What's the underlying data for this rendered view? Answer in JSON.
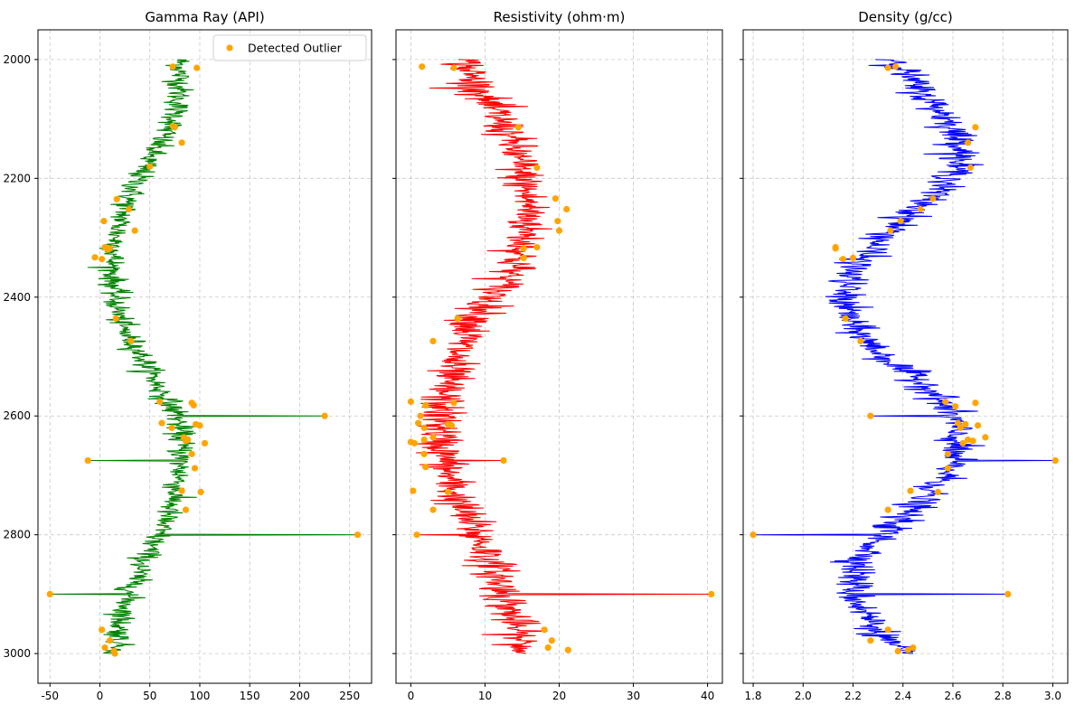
{
  "chart_data": [
    {
      "type": "line",
      "title": "Gamma Ray (API)",
      "color": "#008000",
      "xlim": [
        -62,
        272
      ],
      "ylim": [
        3050,
        1950
      ],
      "y_inverted": true,
      "xticks": [
        -50,
        0,
        50,
        100,
        150,
        200,
        250
      ],
      "yticks": [
        2000,
        2200,
        2400,
        2600,
        2800,
        3000
      ],
      "grid": true,
      "legend": {
        "placement": "top-right",
        "entries": [
          {
            "label": "Detected Outlier",
            "marker": "circle",
            "color": "#FFA500"
          }
        ]
      },
      "series": [
        {
          "kind": "line",
          "values_x_profile": [
            [
              2000,
              80
            ],
            [
              2050,
              80
            ],
            [
              2100,
              75
            ],
            [
              2150,
              55
            ],
            [
              2200,
              38
            ],
            [
              2250,
              25
            ],
            [
              2300,
              16
            ],
            [
              2350,
              12
            ],
            [
              2400,
              15
            ],
            [
              2450,
              22
            ],
            [
              2500,
              42
            ],
            [
              2550,
              58
            ],
            [
              2600,
              78
            ],
            [
              2650,
              82
            ],
            [
              2700,
              80
            ],
            [
              2750,
              72
            ],
            [
              2800,
              58
            ],
            [
              2850,
              42
            ],
            [
              2900,
              30
            ],
            [
              2950,
              20
            ],
            [
              3000,
              18
            ]
          ]
        },
        {
          "kind": "spikes",
          "points": [
            [
              2600,
              225
            ],
            [
              2675,
              -12
            ],
            [
              2800,
              258
            ],
            [
              2900,
              -50
            ]
          ]
        },
        {
          "kind": "scatter",
          "name": "Detected Outlier",
          "points": [
            [
              2012,
              73
            ],
            [
              2014,
              97
            ],
            [
              2112,
              73
            ],
            [
              2114,
              75
            ],
            [
              2140,
              82
            ],
            [
              2180,
              50
            ],
            [
              2235,
              17
            ],
            [
              2252,
              29
            ],
            [
              2272,
              4
            ],
            [
              2288,
              35
            ],
            [
              2316,
              5
            ],
            [
              2318,
              10
            ],
            [
              2320,
              8
            ],
            [
              2333,
              -5
            ],
            [
              2336,
              2
            ],
            [
              2436,
              16
            ],
            [
              2474,
              31
            ],
            [
              2576,
              60
            ],
            [
              2578,
              92
            ],
            [
              2582,
              94
            ],
            [
              2600,
              225
            ],
            [
              2612,
              62
            ],
            [
              2614,
              96
            ],
            [
              2616,
              100
            ],
            [
              2620,
              72
            ],
            [
              2636,
              84
            ],
            [
              2640,
              88
            ],
            [
              2642,
              86
            ],
            [
              2646,
              105
            ],
            [
              2664,
              92
            ],
            [
              2675,
              -12
            ],
            [
              2688,
              95
            ],
            [
              2726,
              82
            ],
            [
              2728,
              101
            ],
            [
              2758,
              86
            ],
            [
              2800,
              258
            ],
            [
              2900,
              -50
            ],
            [
              2960,
              2
            ],
            [
              2978,
              10
            ],
            [
              2990,
              5
            ],
            [
              2996,
              14
            ],
            [
              3000,
              15
            ]
          ]
        }
      ]
    },
    {
      "type": "line",
      "title": "Resistivity (ohm·m)",
      "color": "#FF0000",
      "xlim": [
        -2,
        42
      ],
      "ylim": [
        3050,
        1950
      ],
      "y_inverted": true,
      "xticks": [
        0,
        10,
        20,
        30,
        40
      ],
      "grid": true,
      "series": [
        {
          "kind": "line",
          "values_x_profile": [
            [
              2000,
              7
            ],
            [
              2050,
              9
            ],
            [
              2100,
              12
            ],
            [
              2150,
              14
            ],
            [
              2200,
              15
            ],
            [
              2250,
              16
            ],
            [
              2300,
              15.5
            ],
            [
              2350,
              14
            ],
            [
              2400,
              11
            ],
            [
              2450,
              8
            ],
            [
              2500,
              6
            ],
            [
              2550,
              4.5
            ],
            [
              2600,
              4
            ],
            [
              2650,
              4
            ],
            [
              2700,
              5
            ],
            [
              2750,
              6.5
            ],
            [
              2800,
              9
            ],
            [
              2850,
              11
            ],
            [
              2900,
              12.5
            ],
            [
              2950,
              14
            ],
            [
              3000,
              15
            ]
          ]
        },
        {
          "kind": "spikes",
          "points": [
            [
              2675,
              12.5
            ],
            [
              2800,
              0.8
            ],
            [
              2900,
              40.5
            ]
          ]
        },
        {
          "kind": "scatter",
          "name": "Detected Outlier",
          "points": [
            [
              2012,
              1.5
            ],
            [
              2014,
              5.8
            ],
            [
              2114,
              14.5
            ],
            [
              2182,
              17
            ],
            [
              2234,
              19.5
            ],
            [
              2252,
              21
            ],
            [
              2272,
              19.8
            ],
            [
              2288,
              20
            ],
            [
              2316,
              17
            ],
            [
              2318,
              15.2
            ],
            [
              2334,
              15.2
            ],
            [
              2436,
              6.3
            ],
            [
              2474,
              3
            ],
            [
              2576,
              0
            ],
            [
              2578,
              5.8
            ],
            [
              2582,
              2
            ],
            [
              2600,
              1.3
            ],
            [
              2612,
              1
            ],
            [
              2614,
              5
            ],
            [
              2616,
              5.5
            ],
            [
              2620,
              1.8
            ],
            [
              2636,
              3
            ],
            [
              2640,
              1.8
            ],
            [
              2644,
              0
            ],
            [
              2646,
              0.5
            ],
            [
              2664,
              1.8
            ],
            [
              2675,
              12.5
            ],
            [
              2686,
              2
            ],
            [
              2726,
              0.3
            ],
            [
              2728,
              5
            ],
            [
              2758,
              3
            ],
            [
              2800,
              0.8
            ],
            [
              2900,
              40.5
            ],
            [
              2960,
              18
            ],
            [
              2978,
              19
            ],
            [
              2990,
              18.5
            ],
            [
              2994,
              21.2
            ]
          ]
        }
      ]
    },
    {
      "type": "line",
      "title": "Density (g/cc)",
      "color": "#0000FF",
      "xlim": [
        1.76,
        3.06
      ],
      "ylim": [
        3050,
        1950
      ],
      "y_inverted": true,
      "xticks": [
        1.8,
        2.0,
        2.2,
        2.4,
        2.6,
        2.8,
        3.0
      ],
      "grid": true,
      "series": [
        {
          "kind": "line",
          "values_x_profile": [
            [
              2000,
              2.37
            ],
            [
              2050,
              2.46
            ],
            [
              2100,
              2.58
            ],
            [
              2150,
              2.64
            ],
            [
              2200,
              2.6
            ],
            [
              2250,
              2.46
            ],
            [
              2300,
              2.32
            ],
            [
              2350,
              2.2
            ],
            [
              2400,
              2.16
            ],
            [
              2450,
              2.2
            ],
            [
              2500,
              2.32
            ],
            [
              2550,
              2.5
            ],
            [
              2600,
              2.6
            ],
            [
              2650,
              2.61
            ],
            [
              2700,
              2.58
            ],
            [
              2750,
              2.45
            ],
            [
              2800,
              2.32
            ],
            [
              2850,
              2.22
            ],
            [
              2900,
              2.2
            ],
            [
              2950,
              2.28
            ],
            [
              3000,
              2.38
            ]
          ]
        },
        {
          "kind": "spikes",
          "points": [
            [
              2600,
              2.27
            ],
            [
              2675,
              3.01
            ],
            [
              2800,
              1.8
            ],
            [
              2900,
              2.82
            ]
          ]
        },
        {
          "kind": "scatter",
          "name": "Detected Outlier",
          "points": [
            [
              2012,
              2.37
            ],
            [
              2014,
              2.34
            ],
            [
              2114,
              2.69
            ],
            [
              2140,
              2.66
            ],
            [
              2182,
              2.67
            ],
            [
              2234,
              2.52
            ],
            [
              2252,
              2.47
            ],
            [
              2272,
              2.39
            ],
            [
              2288,
              2.35
            ],
            [
              2316,
              2.13
            ],
            [
              2318,
              2.13
            ],
            [
              2334,
              2.2
            ],
            [
              2336,
              2.16
            ],
            [
              2436,
              2.17
            ],
            [
              2474,
              2.23
            ],
            [
              2576,
              2.57
            ],
            [
              2578,
              2.69
            ],
            [
              2584,
              2.61
            ],
            [
              2600,
              2.27
            ],
            [
              2612,
              2.62
            ],
            [
              2614,
              2.65
            ],
            [
              2616,
              2.7
            ],
            [
              2620,
              2.63
            ],
            [
              2636,
              2.73
            ],
            [
              2640,
              2.66
            ],
            [
              2642,
              2.68
            ],
            [
              2646,
              2.64
            ],
            [
              2664,
              2.58
            ],
            [
              2675,
              3.01
            ],
            [
              2688,
              2.58
            ],
            [
              2726,
              2.43
            ],
            [
              2728,
              2.54
            ],
            [
              2758,
              2.34
            ],
            [
              2800,
              1.8
            ],
            [
              2900,
              2.82
            ],
            [
              2960,
              2.34
            ],
            [
              2978,
              2.27
            ],
            [
              2990,
              2.44
            ],
            [
              2994,
              2.42
            ],
            [
              2996,
              2.38
            ]
          ]
        }
      ]
    }
  ]
}
